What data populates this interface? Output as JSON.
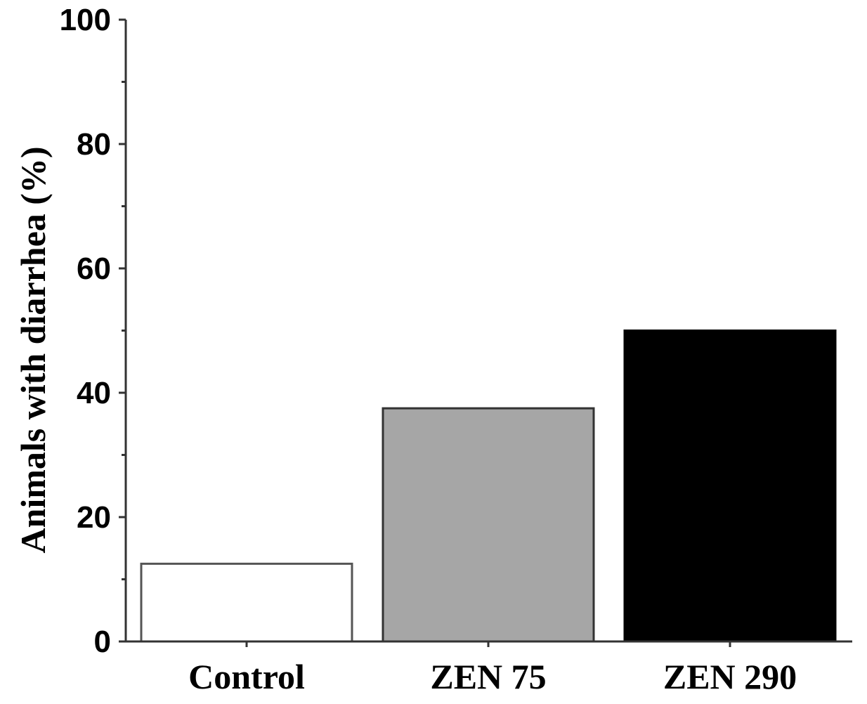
{
  "chart_data": {
    "type": "bar",
    "title": "",
    "xlabel": "",
    "ylabel": "Animals with diarrhea (%)",
    "categories": [
      "Control",
      "ZEN 75",
      "ZEN 290"
    ],
    "values": [
      12.5,
      37.5,
      50
    ],
    "bar_colors": [
      "#ffffff",
      "#a6a6a6",
      "#000000"
    ],
    "bar_edge_colors": [
      "#555555",
      "#333333",
      "#000000"
    ],
    "ylim": [
      0,
      100
    ],
    "yticks": [
      0,
      20,
      40,
      60,
      80,
      100
    ],
    "yminor_step": 10,
    "grid": false,
    "legend": "none"
  }
}
